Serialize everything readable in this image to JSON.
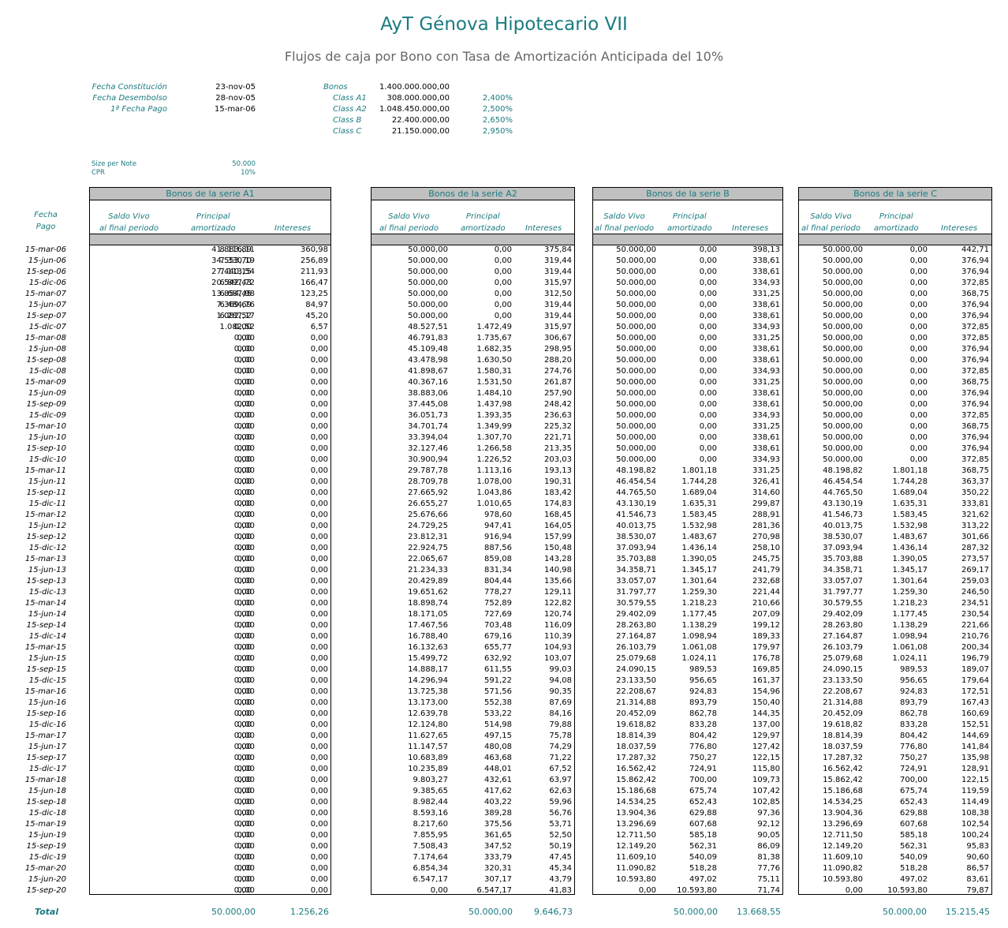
{
  "title": "AyT Génova Hipotecario VII",
  "subtitle": "Flujos de caja por Bono con Tasa de Amortización Anticipada del 10%",
  "info_left": [
    {
      "label": "Fecha Constitución",
      "value": "23-nov-05"
    },
    {
      "label": "Fecha Desembolso",
      "value": "28-nov-05"
    },
    {
      "label": "1ª Fecha Pago",
      "value": "15-mar-06"
    }
  ],
  "info_right": [
    {
      "label": "Bonos",
      "value": "1.400.000.000,00",
      "pct": ""
    },
    {
      "label": "Class A1",
      "value": "308.000.000,00",
      "pct": "2,400%"
    },
    {
      "label": "Class A2",
      "value": "1.048.450.000,00",
      "pct": "2,500%"
    },
    {
      "label": "Class B",
      "value": "22.400.000,00",
      "pct": "2,650%"
    },
    {
      "label": "Class C",
      "value": "21.150.000,00",
      "pct": "2,950%"
    }
  ],
  "size_per_note": {
    "label": "Size per Note",
    "value": "50.000"
  },
  "cpr": {
    "label": "CPR",
    "value": "10%"
  },
  "fecha_header": [
    "Fecha",
    "Pago"
  ],
  "col_headers": {
    "saldo": [
      "Saldo Vivo",
      "al final periodo"
    ],
    "principal": [
      "Principal",
      "amortizado"
    ],
    "intereses": "Intereses"
  },
  "total_label": "Total",
  "dates": [
    "15-mar-06",
    "15-jun-06",
    "15-sep-06",
    "15-dic-06",
    "15-mar-07",
    "15-jun-07",
    "15-sep-07",
    "15-dic-07",
    "15-mar-08",
    "15-jun-08",
    "15-sep-08",
    "15-dic-08",
    "15-mar-09",
    "15-jun-09",
    "15-sep-09",
    "15-dic-09",
    "15-mar-10",
    "15-jun-10",
    "15-sep-10",
    "15-dic-10",
    "15-mar-11",
    "15-jun-11",
    "15-sep-11",
    "15-dic-11",
    "15-mar-12",
    "15-jun-12",
    "15-sep-12",
    "15-dic-12",
    "15-mar-13",
    "15-jun-13",
    "15-sep-13",
    "15-dic-13",
    "15-mar-14",
    "15-jun-14",
    "15-sep-14",
    "15-dic-14",
    "15-mar-15",
    "15-jun-15",
    "15-sep-15",
    "15-dic-15",
    "15-mar-16",
    "15-jun-16",
    "15-sep-16",
    "15-dic-16",
    "15-mar-17",
    "15-jun-17",
    "15-sep-17",
    "15-dic-17",
    "15-mar-18",
    "15-jun-18",
    "15-sep-18",
    "15-dic-18",
    "15-mar-19",
    "15-jun-19",
    "15-sep-19",
    "15-dic-19",
    "15-mar-20",
    "15-jun-20",
    "15-sep-20"
  ],
  "sections": [
    {
      "id": "a1",
      "title": "Bonos de la serie A1",
      "total_principal": "50.000,00",
      "total_intereses": "1.256,26",
      "saldo": [
        "41.883,89",
        "34.553,70",
        "27.440,15",
        "20.542,43",
        "13.854,45",
        "7.369,69",
        "1.082,52",
        "0,00",
        "0,00",
        "0,00",
        "0,00",
        "0,00",
        "0,00",
        "0,00",
        "0,00",
        "0,00",
        "0,00",
        "0,00",
        "0,00",
        "0,00",
        "0,00",
        "0,00",
        "0,00",
        "0,00",
        "0,00",
        "0,00",
        "0,00",
        "0,00",
        "0,00",
        "0,00",
        "0,00",
        "0,00",
        "0,00",
        "0,00",
        "0,00",
        "0,00",
        "0,00",
        "0,00",
        "0,00",
        "0,00",
        "0,00",
        "0,00",
        "0,00",
        "0,00",
        "0,00",
        "0,00",
        "0,00",
        "0,00",
        "0,00",
        "0,00",
        "0,00",
        "0,00",
        "0,00",
        "0,00",
        "0,00",
        "0,00",
        "0,00",
        "0,00",
        "0,00"
      ],
      "principal": [
        "8.116,11",
        "7.330,19",
        "7.113,54",
        "6.897,72",
        "6.687,98",
        "6.484,76",
        "6.287,17",
        "1.082,52",
        "0,00",
        "0,00",
        "0,00",
        "0,00",
        "0,00",
        "0,00",
        "0,00",
        "0,00",
        "0,00",
        "0,00",
        "0,00",
        "0,00",
        "0,00",
        "0,00",
        "0,00",
        "0,00",
        "0,00",
        "0,00",
        "0,00",
        "0,00",
        "0,00",
        "0,00",
        "0,00",
        "0,00",
        "0,00",
        "0,00",
        "0,00",
        "0,00",
        "0,00",
        "0,00",
        "0,00",
        "0,00",
        "0,00",
        "0,00",
        "0,00",
        "0,00",
        "0,00",
        "0,00",
        "0,00",
        "0,00",
        "0,00",
        "0,00",
        "0,00",
        "0,00",
        "0,00",
        "0,00",
        "0,00",
        "0,00",
        "0,00",
        "0,00",
        "0,00"
      ],
      "intereses": [
        "360,98",
        "256,89",
        "211,93",
        "166,47",
        "123,25",
        "84,97",
        "45,20",
        "6,57",
        "0,00",
        "0,00",
        "0,00",
        "0,00",
        "0,00",
        "0,00",
        "0,00",
        "0,00",
        "0,00",
        "0,00",
        "0,00",
        "0,00",
        "0,00",
        "0,00",
        "0,00",
        "0,00",
        "0,00",
        "0,00",
        "0,00",
        "0,00",
        "0,00",
        "0,00",
        "0,00",
        "0,00",
        "0,00",
        "0,00",
        "0,00",
        "0,00",
        "0,00",
        "0,00",
        "0,00",
        "0,00",
        "0,00",
        "0,00",
        "0,00",
        "0,00",
        "0,00",
        "0,00",
        "0,00",
        "0,00",
        "0,00",
        "0,00",
        "0,00",
        "0,00",
        "0,00",
        "0,00",
        "0,00",
        "0,00",
        "0,00",
        "0,00",
        "0,00"
      ]
    },
    {
      "id": "a2",
      "title": "Bonos de la serie A2",
      "total_principal": "50.000,00",
      "total_intereses": "9.646,73",
      "saldo": [
        "50.000,00",
        "50.000,00",
        "50.000,00",
        "50.000,00",
        "50.000,00",
        "50.000,00",
        "50.000,00",
        "48.527,51",
        "46.791,83",
        "45.109,48",
        "43.478,98",
        "41.898,67",
        "40.367,16",
        "38.883,06",
        "37.445,08",
        "36.051,73",
        "34.701,74",
        "33.394,04",
        "32.127,46",
        "30.900,94",
        "29.787,78",
        "28.709,78",
        "27.665,92",
        "26.655,27",
        "25.676,66",
        "24.729,25",
        "23.812,31",
        "22.924,75",
        "22.065,67",
        "21.234,33",
        "20.429,89",
        "19.651,62",
        "18.898,74",
        "18.171,05",
        "17.467,56",
        "16.788,40",
        "16.132,63",
        "15.499,72",
        "14.888,17",
        "14.296,94",
        "13.725,38",
        "13.173,00",
        "12.639,78",
        "12.124,80",
        "11.627,65",
        "11.147,57",
        "10.683,89",
        "10.235,89",
        "9.803,27",
        "9.385,65",
        "8.982,44",
        "8.593,16",
        "8.217,60",
        "7.855,95",
        "7.508,43",
        "7.174,64",
        "6.854,34",
        "6.547,17",
        "0,00"
      ],
      "principal": [
        "0,00",
        "0,00",
        "0,00",
        "0,00",
        "0,00",
        "0,00",
        "0,00",
        "1.472,49",
        "1.735,67",
        "1.682,35",
        "1.630,50",
        "1.580,31",
        "1.531,50",
        "1.484,10",
        "1.437,98",
        "1.393,35",
        "1.349,99",
        "1.307,70",
        "1.266,58",
        "1.226,52",
        "1.113,16",
        "1.078,00",
        "1.043,86",
        "1.010,65",
        "978,60",
        "947,41",
        "916,94",
        "887,56",
        "859,08",
        "831,34",
        "804,44",
        "778,27",
        "752,89",
        "727,69",
        "703,48",
        "679,16",
        "655,77",
        "632,92",
        "611,55",
        "591,22",
        "571,56",
        "552,38",
        "533,22",
        "514,98",
        "497,15",
        "480,08",
        "463,68",
        "448,01",
        "432,61",
        "417,62",
        "403,22",
        "389,28",
        "375,56",
        "361,65",
        "347,52",
        "333,79",
        "320,31",
        "307,17",
        "6.547,17"
      ],
      "intereses": [
        "375,84",
        "319,44",
        "319,44",
        "315,97",
        "312,50",
        "319,44",
        "319,44",
        "315,97",
        "306,67",
        "298,95",
        "288,20",
        "274,76",
        "261,87",
        "257,90",
        "248,42",
        "236,63",
        "225,32",
        "221,71",
        "213,35",
        "203,03",
        "193,13",
        "190,31",
        "183,42",
        "174,83",
        "168,45",
        "164,05",
        "157,99",
        "150,48",
        "143,28",
        "140,98",
        "135,66",
        "129,11",
        "122,82",
        "120,74",
        "116,09",
        "110,39",
        "104,93",
        "103,07",
        "99,03",
        "94,08",
        "90,35",
        "87,69",
        "84,16",
        "79,88",
        "75,78",
        "74,29",
        "71,22",
        "67,52",
        "63,97",
        "62,63",
        "59,96",
        "56,76",
        "53,71",
        "52,50",
        "50,19",
        "47,45",
        "45,34",
        "43,79",
        "41,83"
      ]
    },
    {
      "id": "b",
      "title": "Bonos de la serie B",
      "total_principal": "50.000,00",
      "total_intereses": "13.668,55",
      "saldo": [
        "50.000,00",
        "50.000,00",
        "50.000,00",
        "50.000,00",
        "50.000,00",
        "50.000,00",
        "50.000,00",
        "50.000,00",
        "50.000,00",
        "50.000,00",
        "50.000,00",
        "50.000,00",
        "50.000,00",
        "50.000,00",
        "50.000,00",
        "50.000,00",
        "50.000,00",
        "50.000,00",
        "50.000,00",
        "50.000,00",
        "48.198,82",
        "46.454,54",
        "44.765,50",
        "43.130,19",
        "41.546,73",
        "40.013,75",
        "38.530,07",
        "37.093,94",
        "35.703,88",
        "34.358,71",
        "33.057,07",
        "31.797,77",
        "30.579,55",
        "29.402,09",
        "28.263,80",
        "27.164,87",
        "26.103,79",
        "25.079,68",
        "24.090,15",
        "23.133,50",
        "22.208,67",
        "21.314,88",
        "20.452,09",
        "19.618,82",
        "18.814,39",
        "18.037,59",
        "17.287,32",
        "16.562,42",
        "15.862,42",
        "15.186,68",
        "14.534,25",
        "13.904,36",
        "13.296,69",
        "12.711,50",
        "12.149,20",
        "11.609,10",
        "11.090,82",
        "10.593,80",
        "0,00"
      ],
      "principal": [
        "0,00",
        "0,00",
        "0,00",
        "0,00",
        "0,00",
        "0,00",
        "0,00",
        "0,00",
        "0,00",
        "0,00",
        "0,00",
        "0,00",
        "0,00",
        "0,00",
        "0,00",
        "0,00",
        "0,00",
        "0,00",
        "0,00",
        "0,00",
        "1.801,18",
        "1.744,28",
        "1.689,04",
        "1.635,31",
        "1.583,45",
        "1.532,98",
        "1.483,67",
        "1.436,14",
        "1.390,05",
        "1.345,17",
        "1.301,64",
        "1.259,30",
        "1.218,23",
        "1.177,45",
        "1.138,29",
        "1.098,94",
        "1.061,08",
        "1.024,11",
        "989,53",
        "956,65",
        "924,83",
        "893,79",
        "862,78",
        "833,28",
        "804,42",
        "776,80",
        "750,27",
        "724,91",
        "700,00",
        "675,74",
        "652,43",
        "629,88",
        "607,68",
        "585,18",
        "562,31",
        "540,09",
        "518,28",
        "497,02",
        "10.593,80"
      ],
      "intereses": [
        "398,13",
        "338,61",
        "338,61",
        "334,93",
        "331,25",
        "338,61",
        "338,61",
        "334,93",
        "331,25",
        "338,61",
        "338,61",
        "334,93",
        "331,25",
        "338,61",
        "338,61",
        "334,93",
        "331,25",
        "338,61",
        "338,61",
        "334,93",
        "331,25",
        "326,41",
        "314,60",
        "299,87",
        "288,91",
        "281,36",
        "270,98",
        "258,10",
        "245,75",
        "241,79",
        "232,68",
        "221,44",
        "210,66",
        "207,09",
        "199,12",
        "189,33",
        "179,97",
        "176,78",
        "169,85",
        "161,37",
        "154,96",
        "150,40",
        "144,35",
        "137,00",
        "129,97",
        "127,42",
        "122,15",
        "115,80",
        "109,73",
        "107,42",
        "102,85",
        "97,36",
        "92,12",
        "90,05",
        "86,09",
        "81,38",
        "77,76",
        "75,11",
        "71,74"
      ]
    },
    {
      "id": "c",
      "title": "Bonos de la serie C",
      "total_principal": "50.000,00",
      "total_intereses": "15.215,45",
      "saldo": [
        "50.000,00",
        "50.000,00",
        "50.000,00",
        "50.000,00",
        "50.000,00",
        "50.000,00",
        "50.000,00",
        "50.000,00",
        "50.000,00",
        "50.000,00",
        "50.000,00",
        "50.000,00",
        "50.000,00",
        "50.000,00",
        "50.000,00",
        "50.000,00",
        "50.000,00",
        "50.000,00",
        "50.000,00",
        "50.000,00",
        "48.198,82",
        "46.454,54",
        "44.765,50",
        "43.130,19",
        "41.546,73",
        "40.013,75",
        "38.530,07",
        "37.093,94",
        "35.703,88",
        "34.358,71",
        "33.057,07",
        "31.797,77",
        "30.579,55",
        "29.402,09",
        "28.263,80",
        "27.164,87",
        "26.103,79",
        "25.079,68",
        "24.090,15",
        "23.133,50",
        "22.208,67",
        "21.314,88",
        "20.452,09",
        "19.618,82",
        "18.814,39",
        "18.037,59",
        "17.287,32",
        "16.562,42",
        "15.862,42",
        "15.186,68",
        "14.534,25",
        "13.904,36",
        "13.296,69",
        "12.711,50",
        "12.149,20",
        "11.609,10",
        "11.090,82",
        "10.593,80",
        "0,00"
      ],
      "principal": [
        "0,00",
        "0,00",
        "0,00",
        "0,00",
        "0,00",
        "0,00",
        "0,00",
        "0,00",
        "0,00",
        "0,00",
        "0,00",
        "0,00",
        "0,00",
        "0,00",
        "0,00",
        "0,00",
        "0,00",
        "0,00",
        "0,00",
        "0,00",
        "1.801,18",
        "1.744,28",
        "1.689,04",
        "1.635,31",
        "1.583,45",
        "1.532,98",
        "1.483,67",
        "1.436,14",
        "1.390,05",
        "1.345,17",
        "1.301,64",
        "1.259,30",
        "1.218,23",
        "1.177,45",
        "1.138,29",
        "1.098,94",
        "1.061,08",
        "1.024,11",
        "989,53",
        "956,65",
        "924,83",
        "893,79",
        "862,78",
        "833,28",
        "804,42",
        "776,80",
        "750,27",
        "724,91",
        "700,00",
        "675,74",
        "652,43",
        "629,88",
        "607,68",
        "585,18",
        "562,31",
        "540,09",
        "518,28",
        "497,02",
        "10.593,80"
      ],
      "intereses": [
        "442,71",
        "376,94",
        "376,94",
        "372,85",
        "368,75",
        "376,94",
        "376,94",
        "372,85",
        "372,85",
        "376,94",
        "376,94",
        "372,85",
        "368,75",
        "376,94",
        "376,94",
        "372,85",
        "368,75",
        "376,94",
        "376,94",
        "372,85",
        "368,75",
        "363,37",
        "350,22",
        "333,81",
        "321,62",
        "313,22",
        "301,66",
        "287,32",
        "273,57",
        "269,17",
        "259,03",
        "246,50",
        "234,51",
        "230,54",
        "221,66",
        "210,76",
        "200,34",
        "196,79",
        "189,07",
        "179,64",
        "172,51",
        "167,43",
        "160,69",
        "152,51",
        "144,69",
        "141,84",
        "135,98",
        "128,91",
        "122,15",
        "119,59",
        "114,49",
        "108,38",
        "102,54",
        "100,24",
        "95,83",
        "90,60",
        "86,57",
        "83,61",
        "79,87"
      ]
    }
  ]
}
